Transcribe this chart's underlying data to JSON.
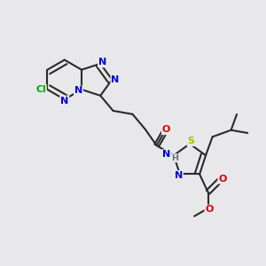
{
  "bg_color": "#e8e8ea",
  "bond_color": "#2a2a2a",
  "bond_lw": 1.5,
  "atom_colors": {
    "N": "#0000dd",
    "S": "#b8b800",
    "O": "#dd0000",
    "Cl": "#00aa00",
    "H": "#557777"
  },
  "font_size": 8.0,
  "dbl_sep": 0.09
}
